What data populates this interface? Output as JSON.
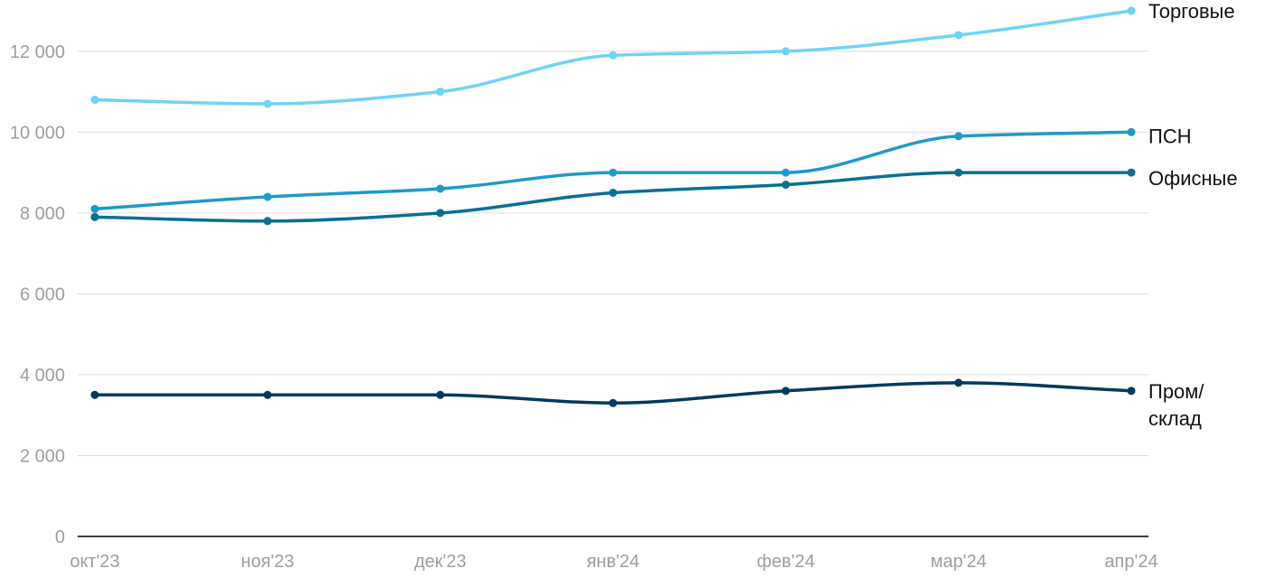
{
  "chart_data": {
    "type": "line",
    "categories": [
      "окт'23",
      "ноя'23",
      "дек'23",
      "янв'24",
      "фев'24",
      "мар'24",
      "апр'24"
    ],
    "yticks": [
      "0",
      "2 000",
      "4 000",
      "6 000",
      "8 000",
      "10 000",
      "12 000"
    ],
    "ylim": [
      0,
      13000
    ],
    "grid": true,
    "legend": "inline-right",
    "series": [
      {
        "name": "Торговые",
        "label_lines": [
          "Торговые"
        ],
        "color": "#6dd3f7",
        "values": [
          10800,
          10700,
          11000,
          11900,
          12000,
          12400,
          13000
        ]
      },
      {
        "name": "ПСН",
        "label_lines": [
          "ПСН"
        ],
        "color": "#1e9ac9",
        "values": [
          8100,
          8400,
          8600,
          9000,
          9000,
          9900,
          10000
        ]
      },
      {
        "name": "Офисные",
        "label_lines": [
          "Офисные"
        ],
        "color": "#0b6e96",
        "values": [
          7900,
          7800,
          8000,
          8500,
          8700,
          9000,
          9000
        ]
      },
      {
        "name": "Пром/склад",
        "label_lines": [
          "Пром/",
          "склад"
        ],
        "color": "#003a5c",
        "values": [
          3500,
          3500,
          3500,
          3300,
          3600,
          3800,
          3600
        ]
      }
    ]
  }
}
